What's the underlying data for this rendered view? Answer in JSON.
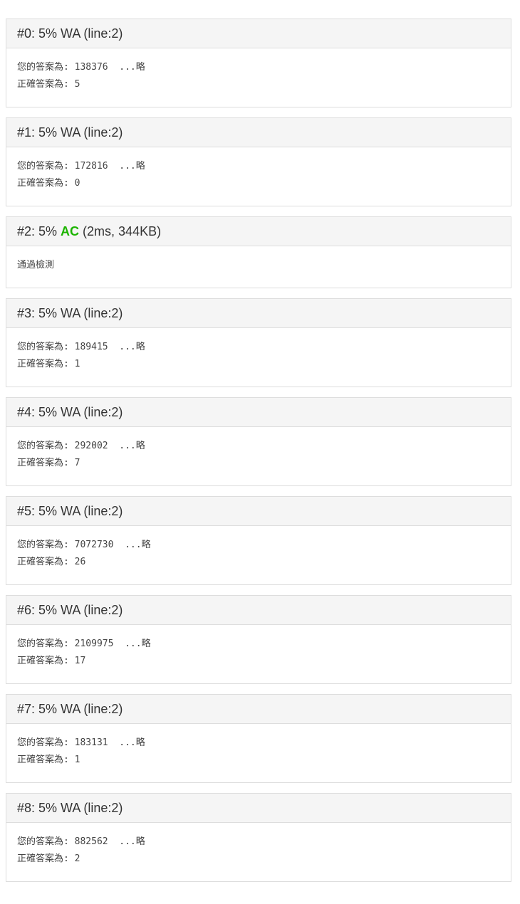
{
  "colors": {
    "ac_green": "#1db400",
    "panel_border": "#dddddd",
    "heading_background": "#f5f5f5",
    "heading_text": "#333333",
    "body_text": "#444444"
  },
  "results": [
    {
      "index_label": "#0",
      "percent": "5%",
      "verdict": "WA",
      "detail": "(line:2)",
      "body_lines": [
        "您的答案為: 138376  ...略",
        "正確答案為: 5"
      ]
    },
    {
      "index_label": "#1",
      "percent": "5%",
      "verdict": "WA",
      "detail": "(line:2)",
      "body_lines": [
        "您的答案為: 172816  ...略",
        "正確答案為: 0"
      ]
    },
    {
      "index_label": "#2",
      "percent": "5%",
      "verdict": "AC",
      "detail": "(2ms, 344KB)",
      "body_lines": [
        "通過檢測"
      ]
    },
    {
      "index_label": "#3",
      "percent": "5%",
      "verdict": "WA",
      "detail": "(line:2)",
      "body_lines": [
        "您的答案為: 189415  ...略",
        "正確答案為: 1"
      ]
    },
    {
      "index_label": "#4",
      "percent": "5%",
      "verdict": "WA",
      "detail": "(line:2)",
      "body_lines": [
        "您的答案為: 292002  ...略",
        "正確答案為: 7"
      ]
    },
    {
      "index_label": "#5",
      "percent": "5%",
      "verdict": "WA",
      "detail": "(line:2)",
      "body_lines": [
        "您的答案為: 7072730  ...略",
        "正確答案為: 26"
      ]
    },
    {
      "index_label": "#6",
      "percent": "5%",
      "verdict": "WA",
      "detail": "(line:2)",
      "body_lines": [
        "您的答案為: 2109975  ...略",
        "正確答案為: 17"
      ]
    },
    {
      "index_label": "#7",
      "percent": "5%",
      "verdict": "WA",
      "detail": "(line:2)",
      "body_lines": [
        "您的答案為: 183131  ...略",
        "正確答案為: 1"
      ]
    },
    {
      "index_label": "#8",
      "percent": "5%",
      "verdict": "WA",
      "detail": "(line:2)",
      "body_lines": [
        "您的答案為: 882562  ...略",
        "正確答案為: 2"
      ]
    }
  ]
}
